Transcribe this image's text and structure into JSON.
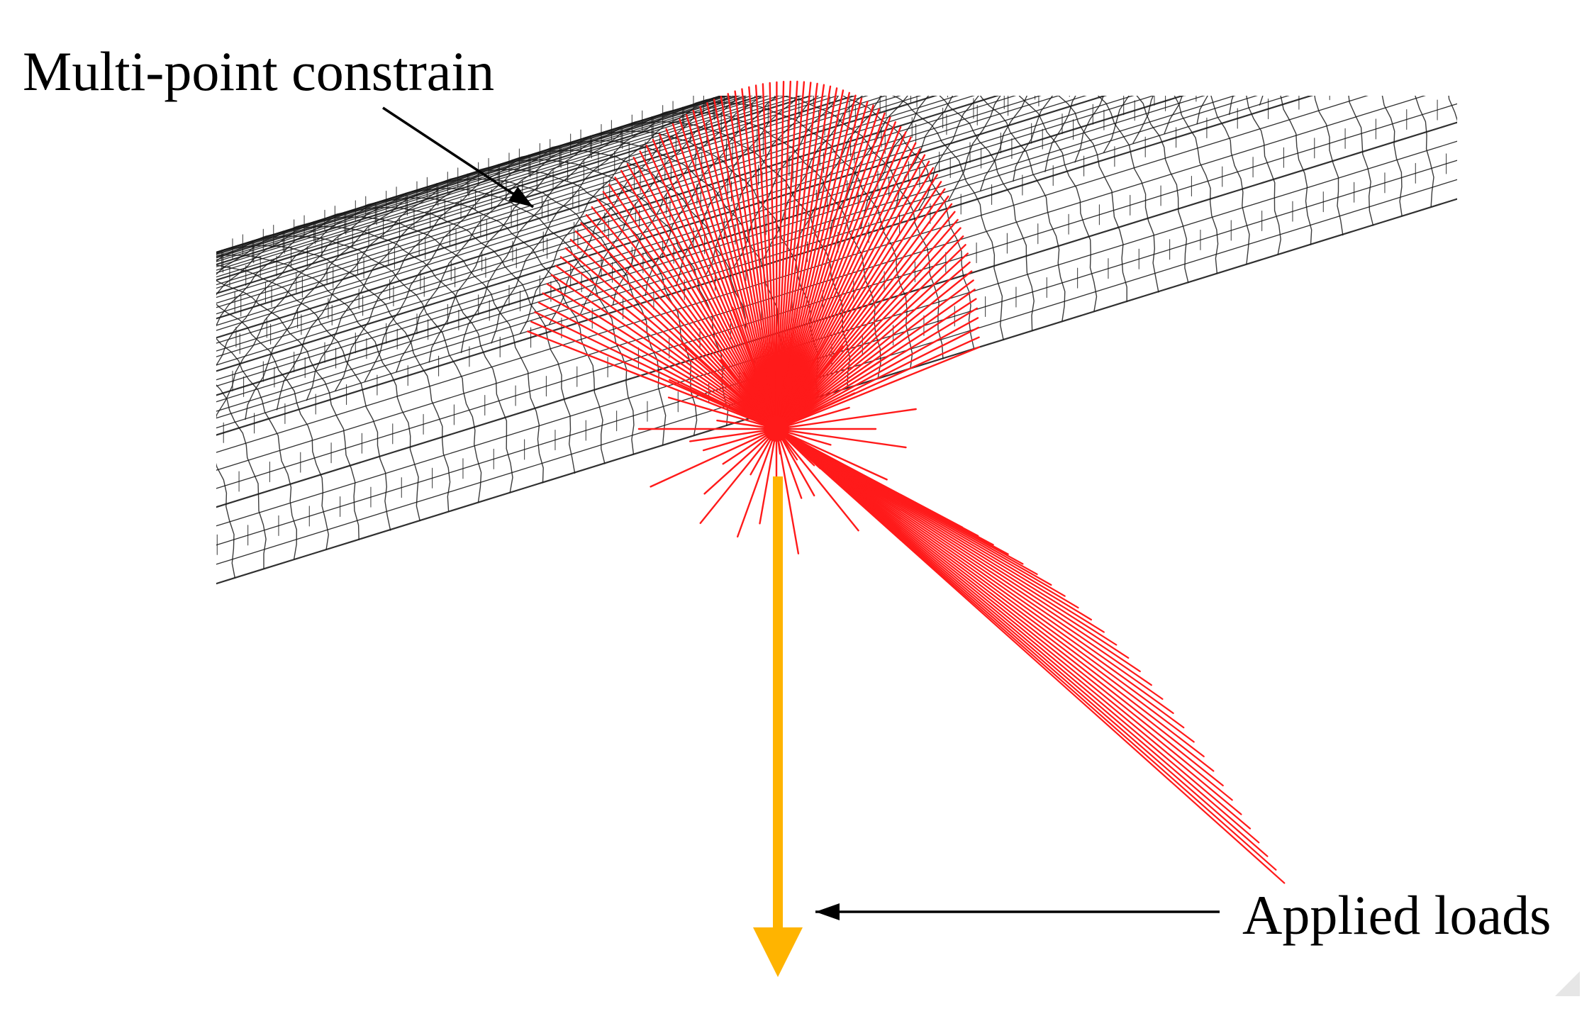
{
  "figure": {
    "labels": {
      "multi_point_constraint": "Multi-point constrain",
      "applied_loads": "Applied loads"
    }
  },
  "colors": {
    "mesh": "#1a1a1a",
    "constraint": "#ff1a1a",
    "load_arrow": "#ffb400",
    "callout_arrow": "#000000"
  }
}
